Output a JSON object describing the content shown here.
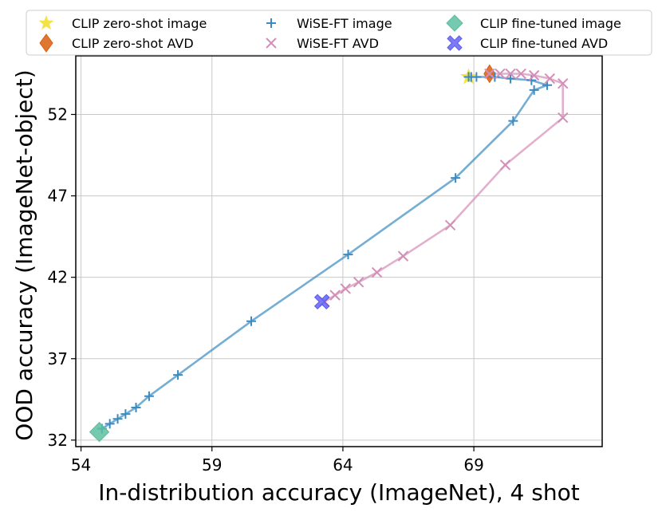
{
  "chart_data": {
    "type": "line",
    "xlabel": "In-distribution accuracy (ImageNet), 4 shot",
    "ylabel": "OOD accuracy (ImageNet-object)",
    "xlim": [
      53.8,
      73.9
    ],
    "ylim": [
      31.6,
      55.6
    ],
    "xticks": [
      54,
      59,
      64,
      69
    ],
    "yticks": [
      32,
      37,
      42,
      47,
      52
    ],
    "grid": true,
    "legend_position": "top",
    "series": [
      {
        "name": "CLIP zero-shot image",
        "marker": "star",
        "color": "#f2e033",
        "x": [
          68.8
        ],
        "y": [
          54.3
        ]
      },
      {
        "name": "CLIP zero-shot AVD",
        "marker": "diamond",
        "color": "#d95f0e",
        "x": [
          69.6
        ],
        "y": [
          54.5
        ]
      },
      {
        "name": "WiSE-FT image",
        "marker": "plus",
        "color": "#3b8bc2",
        "x": [
          54.8,
          55.1,
          55.4,
          55.7,
          56.1,
          56.6,
          57.7,
          60.5,
          64.2,
          68.3,
          70.5,
          71.3,
          71.8,
          71.2,
          70.4,
          69.8,
          69.1,
          68.9,
          68.8
        ],
        "y": [
          32.7,
          33.0,
          33.3,
          33.6,
          34.0,
          34.7,
          36.0,
          39.3,
          43.4,
          48.1,
          51.6,
          53.5,
          53.8,
          54.1,
          54.2,
          54.3,
          54.3,
          54.3,
          54.3
        ]
      },
      {
        "name": "WiSE-FT AVD",
        "marker": "x",
        "color": "#d48fb8",
        "x": [
          63.3,
          63.7,
          64.1,
          64.6,
          65.3,
          66.3,
          68.1,
          70.2,
          72.4,
          72.4,
          71.9,
          71.3,
          70.8,
          70.4,
          70.0,
          69.6
        ],
        "y": [
          40.5,
          40.9,
          41.3,
          41.7,
          42.3,
          43.3,
          45.2,
          48.9,
          51.8,
          53.9,
          54.2,
          54.4,
          54.5,
          54.5,
          54.5,
          54.5
        ]
      },
      {
        "name": "CLIP fine-tuned image",
        "marker": "diamond",
        "color": "#5cc0a0",
        "x": [
          54.7
        ],
        "y": [
          32.5
        ]
      },
      {
        "name": "CLIP fine-tuned AVD",
        "marker": "x-filled",
        "color": "#5a5af2",
        "x": [
          63.2
        ],
        "y": [
          40.5
        ]
      }
    ]
  }
}
